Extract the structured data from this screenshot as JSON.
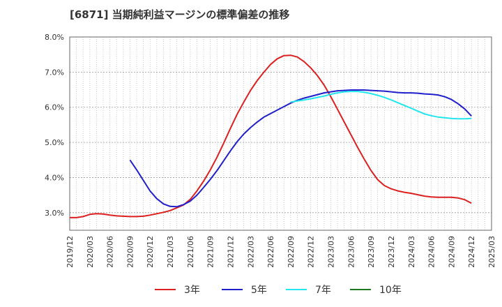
{
  "title": "[6871]  当期純利益マージンの標準偏差の推移",
  "chart_data": {
    "type": "line",
    "ylim": [
      2.5,
      8.0
    ],
    "y_ticks": [
      "3.0%",
      "4.0%",
      "5.0%",
      "6.0%",
      "7.0%",
      "8.0%"
    ],
    "y_tick_values": [
      3.0,
      4.0,
      5.0,
      6.0,
      7.0,
      8.0
    ],
    "x_start": "2019-12",
    "x_end": "2025-03",
    "x_ticks": [
      "2019/12",
      "2020/03",
      "2020/06",
      "2020/09",
      "2020/12",
      "2021/03",
      "2021/06",
      "2021/09",
      "2021/12",
      "2022/03",
      "2022/06",
      "2022/09",
      "2022/12",
      "2023/03",
      "2023/06",
      "2023/09",
      "2023/12",
      "2024/03",
      "2024/06",
      "2024/09",
      "2024/12",
      "2025/03"
    ],
    "grid": true,
    "legend_position": "bottom",
    "series": [
      {
        "name": "3年",
        "color": "#dd1f1f",
        "x": [
          "2019-12",
          "2020-01",
          "2020-02",
          "2020-03",
          "2020-04",
          "2020-05",
          "2020-06",
          "2020-07",
          "2020-08",
          "2020-09",
          "2020-10",
          "2020-11",
          "2020-12",
          "2021-01",
          "2021-02",
          "2021-03",
          "2021-04",
          "2021-05",
          "2021-06",
          "2021-07",
          "2021-08",
          "2021-09",
          "2021-10",
          "2021-11",
          "2021-12",
          "2022-01",
          "2022-02",
          "2022-03",
          "2022-04",
          "2022-05",
          "2022-06",
          "2022-07",
          "2022-08",
          "2022-09",
          "2022-10",
          "2022-11",
          "2022-12",
          "2023-01",
          "2023-02",
          "2023-03",
          "2023-04",
          "2023-05",
          "2023-06",
          "2023-07",
          "2023-08",
          "2023-09",
          "2023-10",
          "2023-11",
          "2023-12",
          "2024-01",
          "2024-02",
          "2024-03",
          "2024-04",
          "2024-05",
          "2024-06",
          "2024-07",
          "2024-08",
          "2024-09",
          "2024-10",
          "2024-11",
          "2024-12"
        ],
        "values": [
          2.86,
          2.86,
          2.89,
          2.95,
          2.97,
          2.96,
          2.93,
          2.91,
          2.9,
          2.89,
          2.89,
          2.9,
          2.93,
          2.97,
          3.01,
          3.06,
          3.14,
          3.22,
          3.38,
          3.62,
          3.9,
          4.22,
          4.58,
          4.98,
          5.4,
          5.8,
          6.15,
          6.48,
          6.76,
          7.0,
          7.22,
          7.38,
          7.47,
          7.48,
          7.43,
          7.3,
          7.12,
          6.9,
          6.63,
          6.3,
          5.94,
          5.58,
          5.22,
          4.86,
          4.52,
          4.2,
          3.94,
          3.77,
          3.68,
          3.62,
          3.58,
          3.55,
          3.51,
          3.47,
          3.45,
          3.44,
          3.44,
          3.44,
          3.42,
          3.37,
          3.27
        ]
      },
      {
        "name": "5年",
        "color": "#1f1fcc",
        "x": [
          "2020-09",
          "2020-10",
          "2020-11",
          "2020-12",
          "2021-01",
          "2021-02",
          "2021-03",
          "2021-04",
          "2021-05",
          "2021-06",
          "2021-07",
          "2021-08",
          "2021-09",
          "2021-10",
          "2021-11",
          "2021-12",
          "2022-01",
          "2022-02",
          "2022-03",
          "2022-04",
          "2022-05",
          "2022-06",
          "2022-07",
          "2022-08",
          "2022-09",
          "2022-10",
          "2022-11",
          "2022-12",
          "2023-01",
          "2023-02",
          "2023-03",
          "2023-04",
          "2023-05",
          "2023-06",
          "2023-07",
          "2023-08",
          "2023-09",
          "2023-10",
          "2023-11",
          "2023-12",
          "2024-01",
          "2024-02",
          "2024-03",
          "2024-04",
          "2024-05",
          "2024-06",
          "2024-07",
          "2024-08",
          "2024-09",
          "2024-10",
          "2024-11",
          "2024-12"
        ],
        "values": [
          4.5,
          4.22,
          3.92,
          3.62,
          3.4,
          3.25,
          3.18,
          3.17,
          3.23,
          3.33,
          3.5,
          3.72,
          3.95,
          4.2,
          4.48,
          4.76,
          5.02,
          5.24,
          5.42,
          5.58,
          5.72,
          5.82,
          5.92,
          6.02,
          6.12,
          6.2,
          6.26,
          6.31,
          6.36,
          6.41,
          6.44,
          6.47,
          6.48,
          6.49,
          6.49,
          6.49,
          6.48,
          6.47,
          6.46,
          6.44,
          6.42,
          6.41,
          6.41,
          6.4,
          6.38,
          6.37,
          6.35,
          6.3,
          6.22,
          6.1,
          5.95,
          5.75
        ]
      },
      {
        "name": "7年",
        "color": "#22e6ee",
        "x": [
          "2022-09",
          "2022-10",
          "2022-11",
          "2022-12",
          "2023-01",
          "2023-02",
          "2023-03",
          "2023-04",
          "2023-05",
          "2023-06",
          "2023-07",
          "2023-08",
          "2023-09",
          "2023-10",
          "2023-11",
          "2023-12",
          "2024-01",
          "2024-02",
          "2024-03",
          "2024-04",
          "2024-05",
          "2024-06",
          "2024-07",
          "2024-08",
          "2024-09",
          "2024-10",
          "2024-11",
          "2024-12"
        ],
        "values": [
          6.15,
          6.18,
          6.21,
          6.24,
          6.28,
          6.32,
          6.37,
          6.41,
          6.44,
          6.45,
          6.45,
          6.43,
          6.39,
          6.34,
          6.28,
          6.21,
          6.13,
          6.05,
          5.97,
          5.89,
          5.81,
          5.76,
          5.72,
          5.7,
          5.68,
          5.67,
          5.67,
          5.68
        ]
      },
      {
        "name": "10年",
        "color": "#1f7a1f",
        "x": [],
        "values": []
      }
    ]
  }
}
